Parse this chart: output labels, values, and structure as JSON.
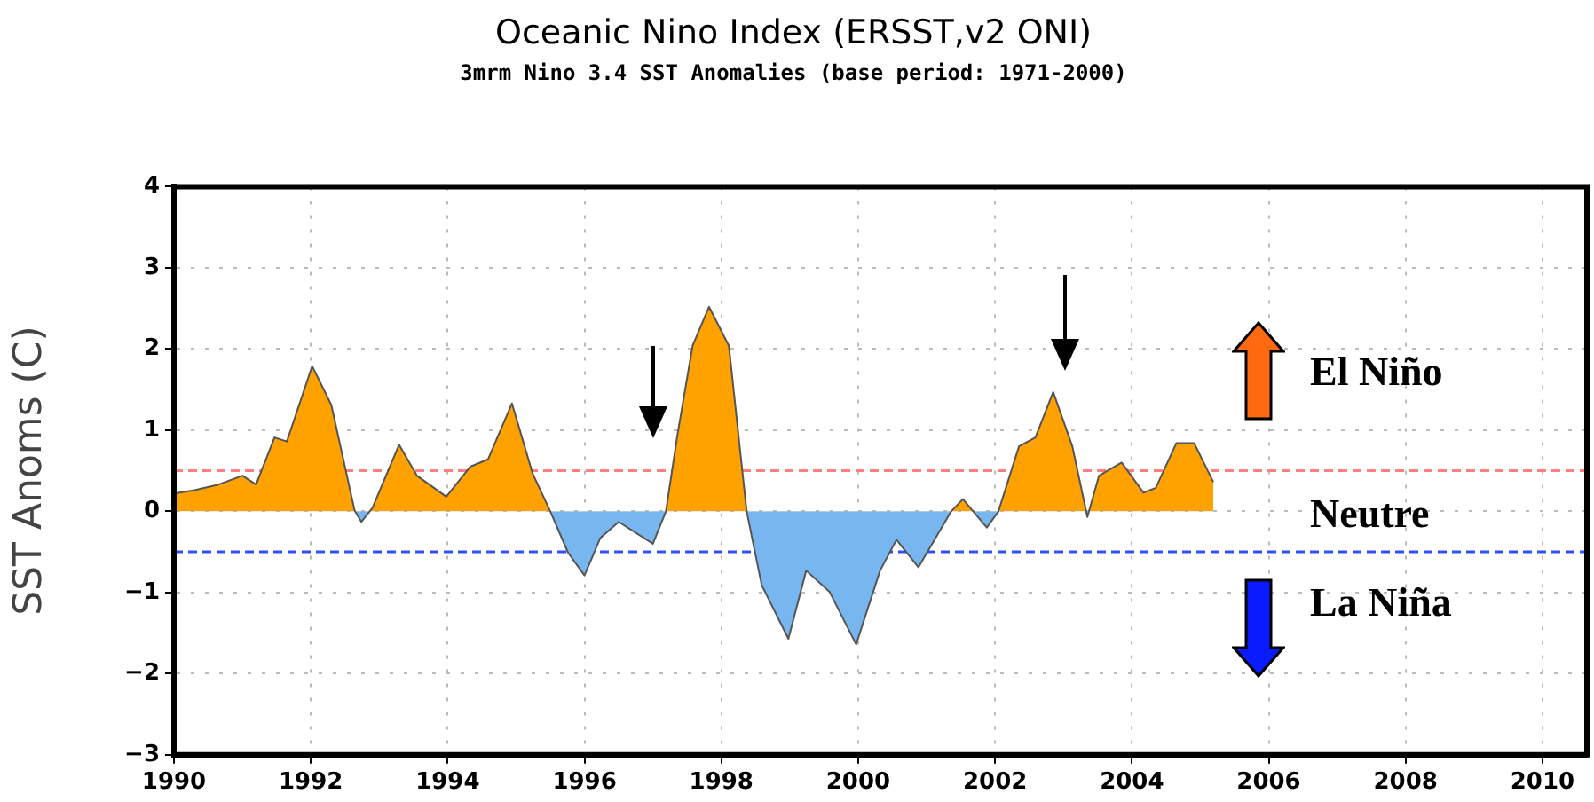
{
  "chart_data": {
    "type": "area",
    "title": "Oceanic Nino Index (ERSST,v2 ONI)",
    "subtitle": "3mrm Nino 3.4 SST Anomalies (base period: 1971-2000)",
    "ylabel": "SST Anoms (C)",
    "x": [
      1990.0,
      1990.3,
      1990.65,
      1991.0,
      1991.2,
      1991.47,
      1991.65,
      1992.02,
      1992.3,
      1992.64,
      1992.74,
      1992.9,
      1993.29,
      1993.55,
      1993.98,
      1994.33,
      1994.59,
      1994.94,
      1995.24,
      1995.5,
      1995.76,
      1996.0,
      1996.23,
      1996.5,
      1997.0,
      1997.19,
      1997.36,
      1997.58,
      1997.82,
      1998.11,
      1998.37,
      1998.59,
      1998.98,
      1999.24,
      1999.58,
      1999.97,
      2000.32,
      2000.56,
      2000.88,
      2001.36,
      2001.53,
      2001.88,
      2002.05,
      2002.35,
      2002.59,
      2002.85,
      2003.13,
      2003.35,
      2003.52,
      2003.85,
      2004.17,
      2004.35,
      2004.65,
      2004.91,
      2005.19
    ],
    "series": [
      {
        "colors": [
          "#ffa200",
          "#ffa200",
          "#ffa200",
          "#ffa200",
          "#ffa200",
          "#ffa200",
          "#ffa200",
          "#ffa200",
          "#ffa200",
          "#ffa200",
          "#78b6f0",
          "#ffa200",
          "#ffa200",
          "#ffa200",
          "#ffa200",
          "#ffa200",
          "#ffa200",
          "#ffa200",
          "#ffa200",
          "#ffa200",
          "#78b6f0",
          "#78b6f0",
          "#78b6f0",
          "#78b6f0",
          "#78b6f0",
          "#ffa200",
          "#ffa200",
          "#ffa200",
          "#ffa200",
          "#ffa200",
          "#ffa200",
          "#78b6f0",
          "#78b6f0",
          "#78b6f0",
          "#78b6f0",
          "#78b6f0",
          "#78b6f0",
          "#78b6f0",
          "#78b6f0",
          "#ffa200",
          "#ffa200",
          "#78b6f0",
          "#ffa200",
          "#ffa200",
          "#ffa200",
          "#ffa200",
          "#ffa200",
          "#78b6f0",
          "#ffa200",
          "#ffa200",
          "#ffa200",
          "#ffa200",
          "#ffa200",
          "#ffa200",
          "#ffa200"
        ],
        "values": [
          0.22,
          0.26,
          0.33,
          0.44,
          0.33,
          0.91,
          0.86,
          1.79,
          1.31,
          0.01,
          -0.13,
          0.04,
          0.82,
          0.44,
          0.18,
          0.55,
          0.64,
          1.33,
          0.47,
          0,
          -0.51,
          -0.79,
          -0.33,
          -0.13,
          -0.4,
          0,
          0.95,
          2.04,
          2.52,
          2.04,
          0,
          -0.91,
          -1.57,
          -0.73,
          -0.99,
          -1.64,
          -0.73,
          -0.35,
          -0.69,
          0,
          0.15,
          -0.2,
          0,
          0.8,
          0.91,
          1.47,
          0.8,
          -0.07,
          0.44,
          0.6,
          0.23,
          0.29,
          0.84,
          0.84,
          0.36
        ]
      }
    ],
    "xlim": [
      1990,
      2010.65
    ],
    "xticks": [
      1990,
      1992,
      1994,
      1996,
      1998,
      2000,
      2002,
      2004,
      2006,
      2008,
      2010
    ],
    "ylim": [
      -3,
      4
    ],
    "yticks": [
      -3,
      -2,
      -1,
      0,
      1,
      2,
      3,
      4
    ],
    "ref_lines": [
      {
        "axis": "y",
        "value": 0.5,
        "color": "#ff8080",
        "line_style": "dashed"
      },
      {
        "axis": "y",
        "value": -0.5,
        "color": "#3050ff",
        "line_style": "dashed"
      }
    ],
    "annotations": [
      "El Niño",
      "Neutre",
      "La Niña"
    ],
    "grid": true,
    "legend": false,
    "marker": "none"
  }
}
